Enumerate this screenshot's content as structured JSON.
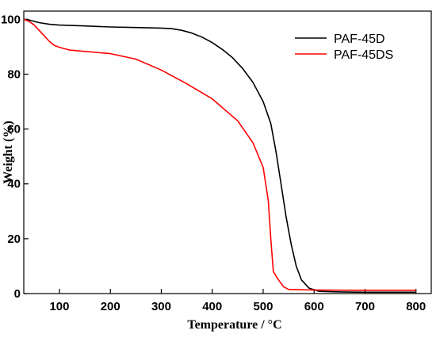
{
  "chart_data": {
    "type": "line",
    "xlabel": "Temperature / °C",
    "ylabel": "Weight (%)",
    "xlim": [
      30,
      830
    ],
    "ylim": [
      0,
      103
    ],
    "x_ticks": [
      100,
      200,
      300,
      400,
      500,
      600,
      700,
      800
    ],
    "y_ticks": [
      0,
      20,
      40,
      60,
      80,
      100
    ],
    "grid": false,
    "legend_position": "top-right",
    "series": [
      {
        "name": "PAF-45D",
        "color": "#000000",
        "points": [
          [
            30,
            100
          ],
          [
            40,
            99.8
          ],
          [
            60,
            98.8
          ],
          [
            80,
            98.2
          ],
          [
            100,
            97.9
          ],
          [
            150,
            97.6
          ],
          [
            200,
            97.2
          ],
          [
            250,
            97.0
          ],
          [
            300,
            96.8
          ],
          [
            320,
            96.6
          ],
          [
            340,
            96.0
          ],
          [
            360,
            95.0
          ],
          [
            380,
            93.5
          ],
          [
            400,
            91.5
          ],
          [
            420,
            89.0
          ],
          [
            440,
            86.0
          ],
          [
            460,
            82.0
          ],
          [
            480,
            77.0
          ],
          [
            500,
            70.0
          ],
          [
            515,
            62.0
          ],
          [
            525,
            52.0
          ],
          [
            535,
            40.0
          ],
          [
            545,
            28.0
          ],
          [
            555,
            18.0
          ],
          [
            565,
            10.0
          ],
          [
            575,
            5.0
          ],
          [
            590,
            2.0
          ],
          [
            610,
            0.8
          ],
          [
            650,
            0.6
          ],
          [
            700,
            0.5
          ],
          [
            800,
            0.5
          ]
        ]
      },
      {
        "name": "PAF-45DS",
        "color": "#ff0000",
        "points": [
          [
            30,
            100
          ],
          [
            40,
            99.3
          ],
          [
            50,
            98.0
          ],
          [
            60,
            96.0
          ],
          [
            70,
            94.0
          ],
          [
            80,
            92.0
          ],
          [
            90,
            90.5
          ],
          [
            100,
            89.8
          ],
          [
            120,
            88.8
          ],
          [
            150,
            88.3
          ],
          [
            200,
            87.5
          ],
          [
            250,
            85.5
          ],
          [
            300,
            81.5
          ],
          [
            350,
            76.5
          ],
          [
            400,
            71.0
          ],
          [
            450,
            63.0
          ],
          [
            480,
            55.0
          ],
          [
            500,
            46.0
          ],
          [
            505,
            40.0
          ],
          [
            510,
            34.0
          ],
          [
            515,
            20.0
          ],
          [
            520,
            8.0
          ],
          [
            530,
            5.0
          ],
          [
            540,
            2.5
          ],
          [
            550,
            1.5
          ],
          [
            600,
            1.3
          ],
          [
            700,
            1.2
          ],
          [
            800,
            1.2
          ]
        ]
      }
    ]
  }
}
